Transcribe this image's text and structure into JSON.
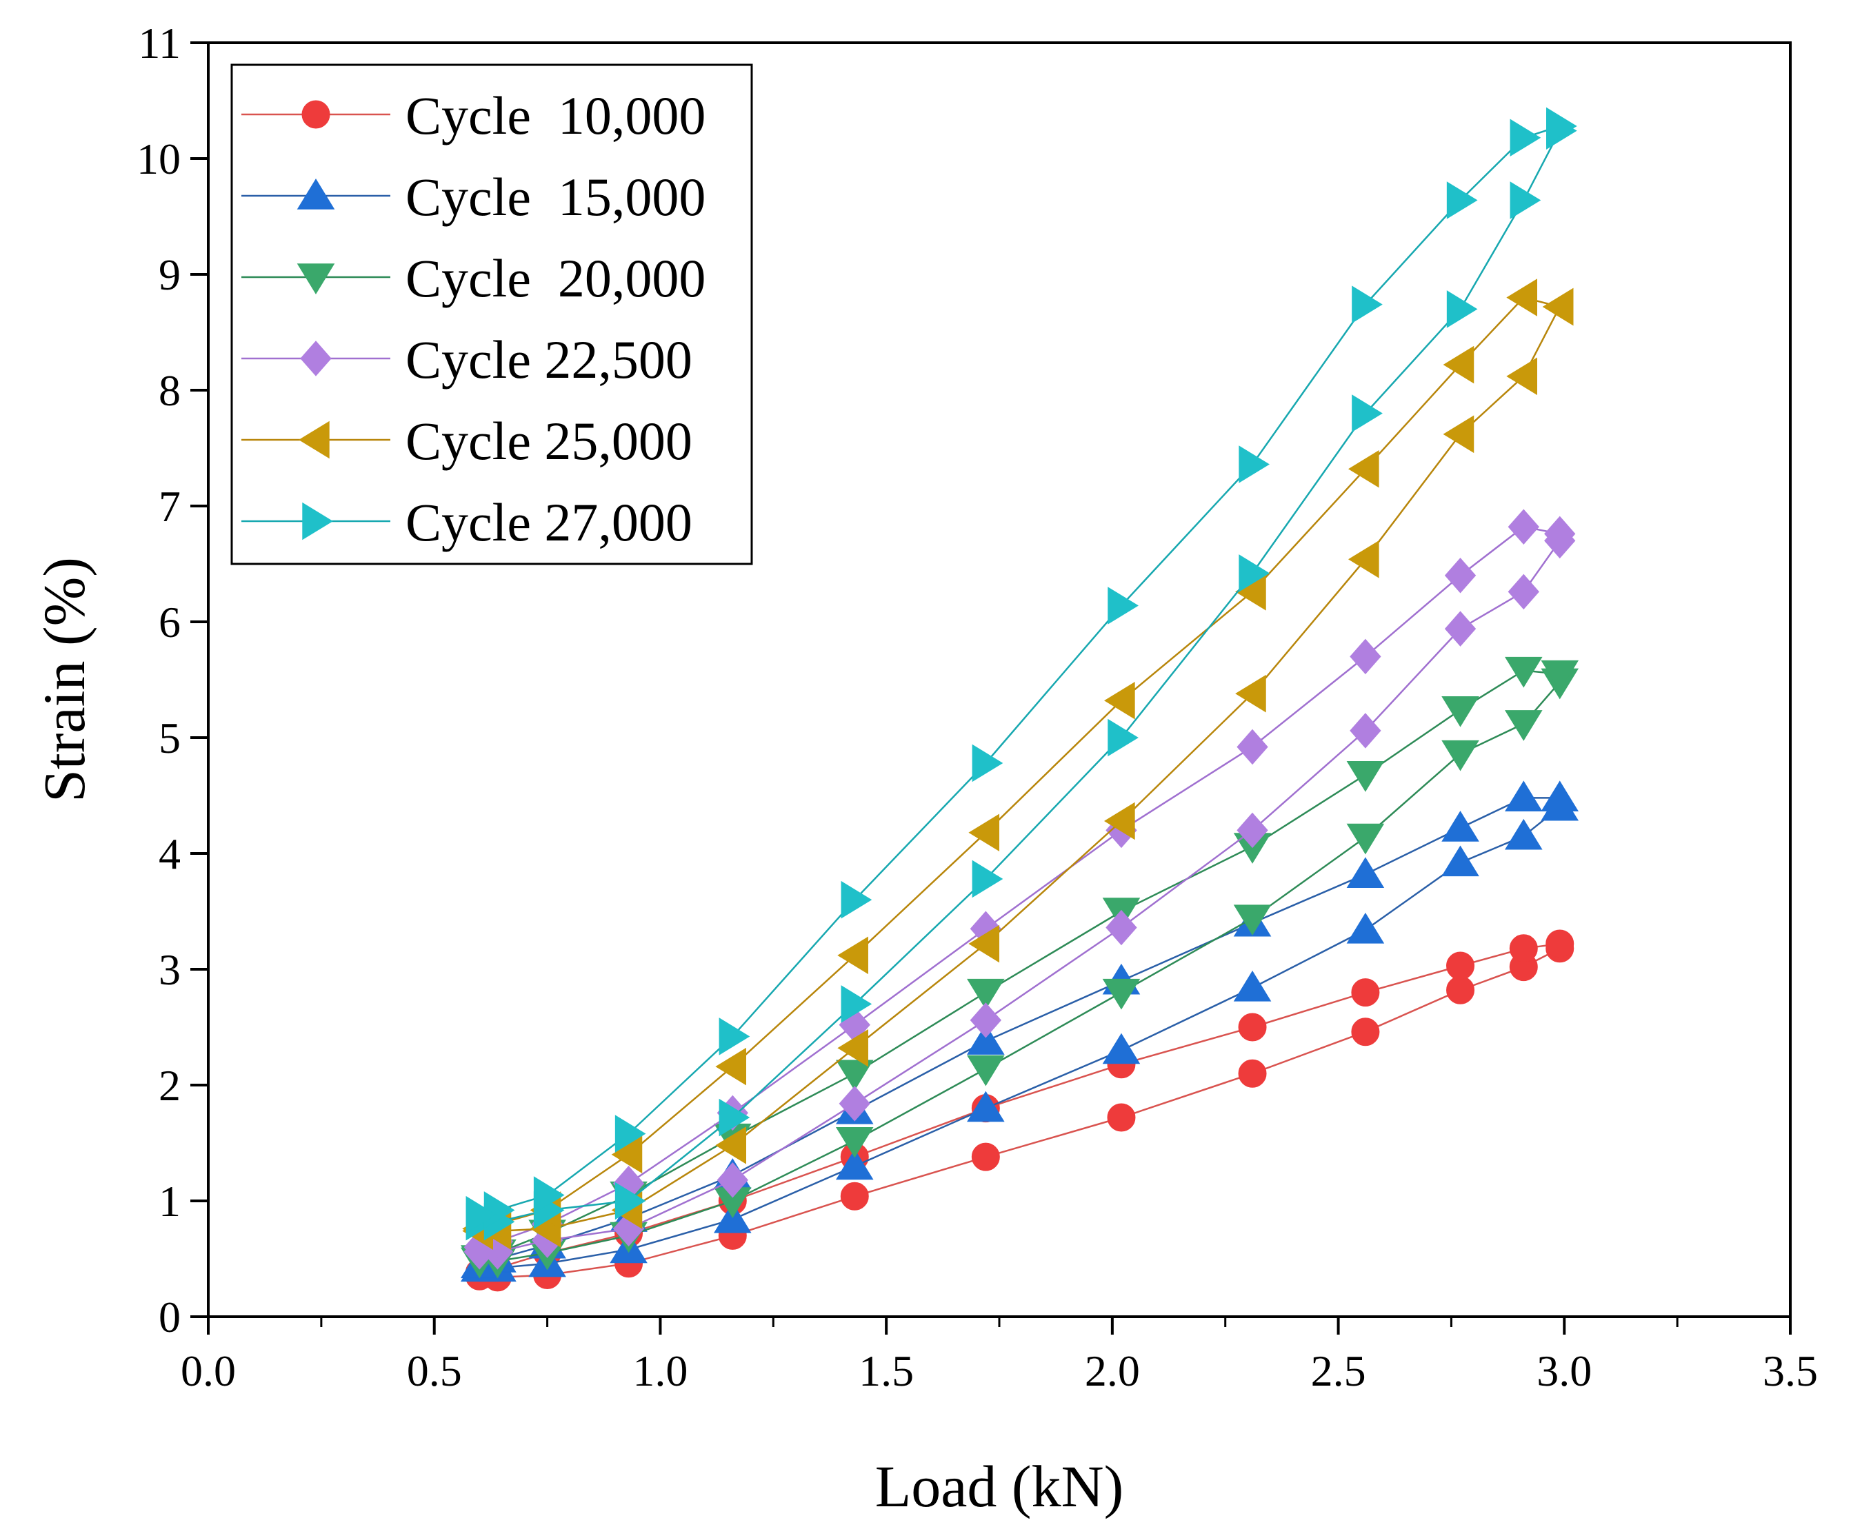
{
  "chart_data": {
    "type": "line",
    "title": "",
    "xlabel": "Load (kN)",
    "ylabel": "Strain (%)",
    "xlim": [
      0.0,
      3.5
    ],
    "ylim": [
      0,
      11
    ],
    "x_ticks": [
      "0.0",
      "0.5",
      "1.0",
      "1.5",
      "2.0",
      "2.5",
      "3.0",
      "3.5"
    ],
    "x_tick_values": [
      0.0,
      0.5,
      1.0,
      1.5,
      2.0,
      2.5,
      3.0,
      3.5
    ],
    "y_ticks": [
      "0",
      "1",
      "2",
      "3",
      "4",
      "5",
      "6",
      "7",
      "8",
      "9",
      "10",
      "11"
    ],
    "y_tick_values": [
      0,
      1,
      2,
      3,
      4,
      5,
      6,
      7,
      8,
      9,
      10,
      11
    ],
    "grid": false,
    "legend_position": "top-left",
    "series": [
      {
        "name": "Cycle  10,000",
        "color": "#ee3b3b",
        "line_color": "#d9534f",
        "marker": "circle",
        "x": [
          0.6,
          0.64,
          0.75,
          0.93,
          1.16,
          1.43,
          1.72,
          2.02,
          2.31,
          2.56,
          2.77,
          2.91,
          2.99,
          2.99,
          2.91,
          2.77,
          2.56,
          2.31,
          2.02,
          1.72,
          1.43,
          1.16,
          0.93,
          0.75,
          0.64,
          0.6
        ],
        "y": [
          0.35,
          0.34,
          0.36,
          0.46,
          0.7,
          1.04,
          1.38,
          1.72,
          2.1,
          2.46,
          2.82,
          3.02,
          3.18,
          3.22,
          3.18,
          3.03,
          2.8,
          2.5,
          2.18,
          1.8,
          1.38,
          1.0,
          0.72,
          0.55,
          0.42,
          0.38
        ]
      },
      {
        "name": "Cycle  15,000",
        "color": "#1f6fd6",
        "line_color": "#2a5fa8",
        "marker": "triangle-up",
        "x": [
          0.6,
          0.64,
          0.75,
          0.93,
          1.16,
          1.43,
          1.72,
          2.02,
          2.31,
          2.56,
          2.77,
          2.91,
          2.99,
          2.99,
          2.91,
          2.77,
          2.56,
          2.31,
          2.02,
          1.72,
          1.43,
          1.16,
          0.93,
          0.75,
          0.64,
          0.6
        ],
        "y": [
          0.42,
          0.42,
          0.46,
          0.58,
          0.84,
          1.3,
          1.8,
          2.3,
          2.84,
          3.34,
          3.92,
          4.15,
          4.4,
          4.48,
          4.48,
          4.22,
          3.82,
          3.4,
          2.9,
          2.38,
          1.78,
          1.22,
          0.85,
          0.62,
          0.5,
          0.45
        ]
      },
      {
        "name": "Cycle  20,000",
        "color": "#3aa86b",
        "line_color": "#2e8b57",
        "marker": "triangle-down",
        "x": [
          0.6,
          0.64,
          0.75,
          0.93,
          1.16,
          1.43,
          1.72,
          2.02,
          2.31,
          2.56,
          2.77,
          2.91,
          2.99,
          2.99,
          2.91,
          2.77,
          2.56,
          2.31,
          2.02,
          1.72,
          1.43,
          1.16,
          0.93,
          0.75,
          0.64,
          0.6
        ],
        "y": [
          0.48,
          0.48,
          0.55,
          0.7,
          1.0,
          1.52,
          2.14,
          2.8,
          3.44,
          4.14,
          4.86,
          5.12,
          5.48,
          5.55,
          5.58,
          5.24,
          4.68,
          4.06,
          3.5,
          2.8,
          2.1,
          1.55,
          1.05,
          0.72,
          0.55,
          0.5
        ]
      },
      {
        "name": "Cycle 22,500",
        "color": "#b07fe0",
        "line_color": "#a070d0",
        "marker": "diamond",
        "x": [
          0.6,
          0.64,
          0.75,
          0.93,
          1.16,
          1.43,
          1.72,
          2.02,
          2.31,
          2.56,
          2.77,
          2.91,
          2.99,
          2.99,
          2.91,
          2.77,
          2.56,
          2.31,
          2.02,
          1.72,
          1.43,
          1.16,
          0.93,
          0.75,
          0.64,
          0.6
        ],
        "y": [
          0.56,
          0.56,
          0.66,
          0.76,
          1.18,
          1.84,
          2.56,
          3.36,
          4.2,
          5.06,
          5.94,
          6.26,
          6.7,
          6.76,
          6.82,
          6.4,
          5.7,
          4.92,
          4.2,
          3.35,
          2.52,
          1.76,
          1.15,
          0.8,
          0.65,
          0.6
        ]
      },
      {
        "name": "Cycle 25,000",
        "color": "#c9990a",
        "line_color": "#b8860b",
        "marker": "triangle-left",
        "x": [
          0.6,
          0.64,
          0.75,
          0.93,
          1.16,
          1.43,
          1.72,
          2.02,
          2.31,
          2.56,
          2.77,
          2.91,
          2.99,
          2.99,
          2.91,
          2.77,
          2.56,
          2.31,
          2.02,
          1.72,
          1.43,
          1.16,
          0.93,
          0.75,
          0.64,
          0.6
        ],
        "y": [
          0.74,
          0.74,
          0.76,
          0.92,
          1.48,
          2.32,
          3.22,
          4.28,
          5.38,
          6.54,
          7.62,
          8.12,
          8.72,
          8.72,
          8.8,
          8.22,
          7.32,
          6.26,
          5.32,
          4.18,
          3.12,
          2.16,
          1.4,
          0.92,
          0.8,
          0.76
        ]
      },
      {
        "name": "Cycle 27,000",
        "color": "#1fc0c9",
        "line_color": "#17a8b0",
        "marker": "triangle-right",
        "x": [
          0.6,
          0.64,
          0.75,
          0.93,
          1.16,
          1.43,
          1.72,
          2.02,
          2.31,
          2.56,
          2.77,
          2.91,
          2.99,
          2.99,
          2.91,
          2.77,
          2.56,
          2.31,
          2.02,
          1.72,
          1.43,
          1.16,
          0.93,
          0.75,
          0.64,
          0.6
        ],
        "y": [
          0.82,
          0.82,
          0.92,
          1.0,
          1.72,
          2.7,
          3.78,
          5.0,
          6.42,
          7.8,
          8.7,
          9.64,
          10.24,
          10.28,
          10.18,
          9.64,
          8.74,
          7.36,
          6.14,
          4.78,
          3.6,
          2.42,
          1.58,
          1.05,
          0.92,
          0.88
        ]
      }
    ]
  }
}
